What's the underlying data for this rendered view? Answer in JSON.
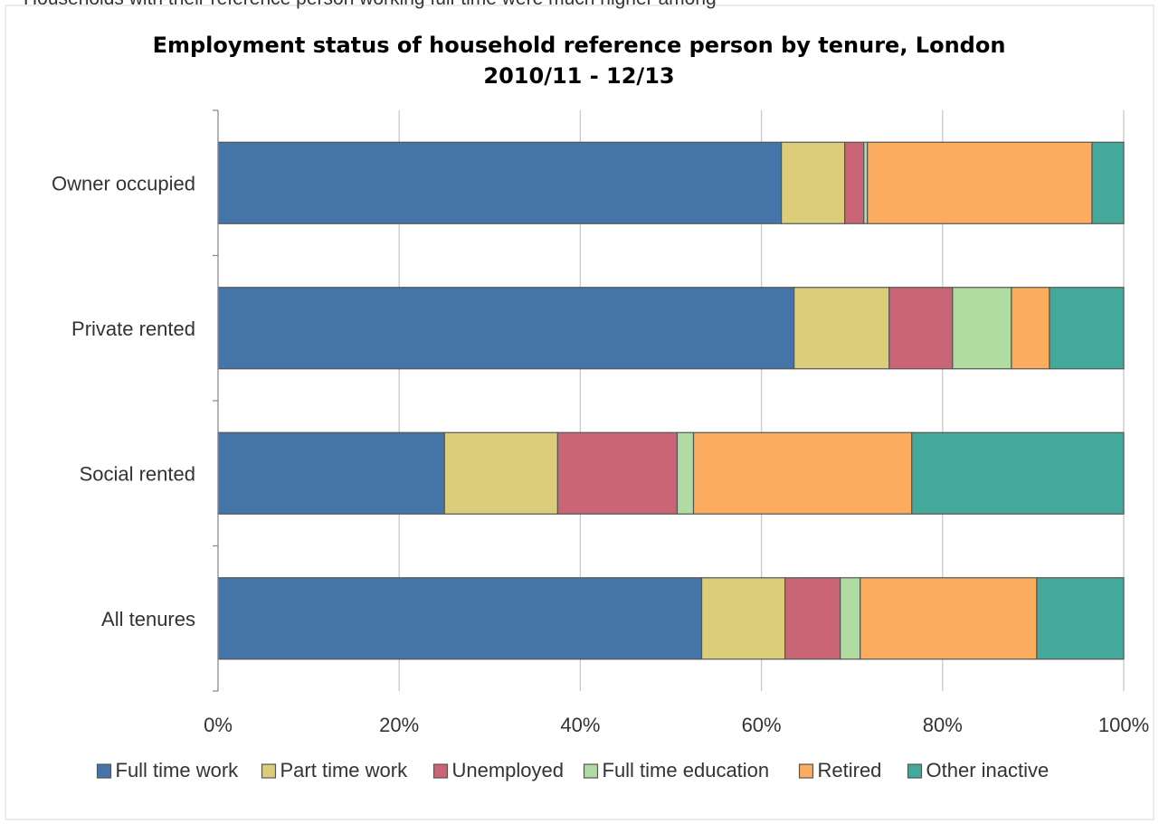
{
  "caption_fragment": "Households with their reference person working full-time were much higher among",
  "chart_data": {
    "type": "bar",
    "orientation": "horizontal",
    "stacked": true,
    "percent": true,
    "title": "Employment status of household reference person by tenure, London",
    "subtitle": "2010/11 - 12/13",
    "categories": [
      "Owner occupied",
      "Private rented",
      "Social rented",
      "All tenures"
    ],
    "series": [
      {
        "name": "Full time work",
        "color": "#4575a8",
        "values": [
          62.2,
          63.6,
          25.0,
          53.4
        ]
      },
      {
        "name": "Part time work",
        "color": "#dccd7a",
        "values": [
          7.0,
          10.5,
          12.5,
          9.2
        ]
      },
      {
        "name": "Unemployed",
        "color": "#c96574",
        "values": [
          2.1,
          7.0,
          13.2,
          6.1
        ]
      },
      {
        "name": "Full time education",
        "color": "#b0dca2",
        "values": [
          0.4,
          6.5,
          1.8,
          2.2
        ]
      },
      {
        "name": "Retired",
        "color": "#fbac5e",
        "values": [
          24.8,
          4.2,
          24.1,
          19.5
        ]
      },
      {
        "name": "Other inactive",
        "color": "#44a99b",
        "values": [
          3.5,
          8.2,
          23.4,
          9.6
        ]
      }
    ],
    "xlim": [
      0,
      100
    ],
    "xticks": [
      "0%",
      "20%",
      "40%",
      "60%",
      "80%",
      "100%"
    ],
    "grid": true,
    "legend_position": "bottom"
  }
}
